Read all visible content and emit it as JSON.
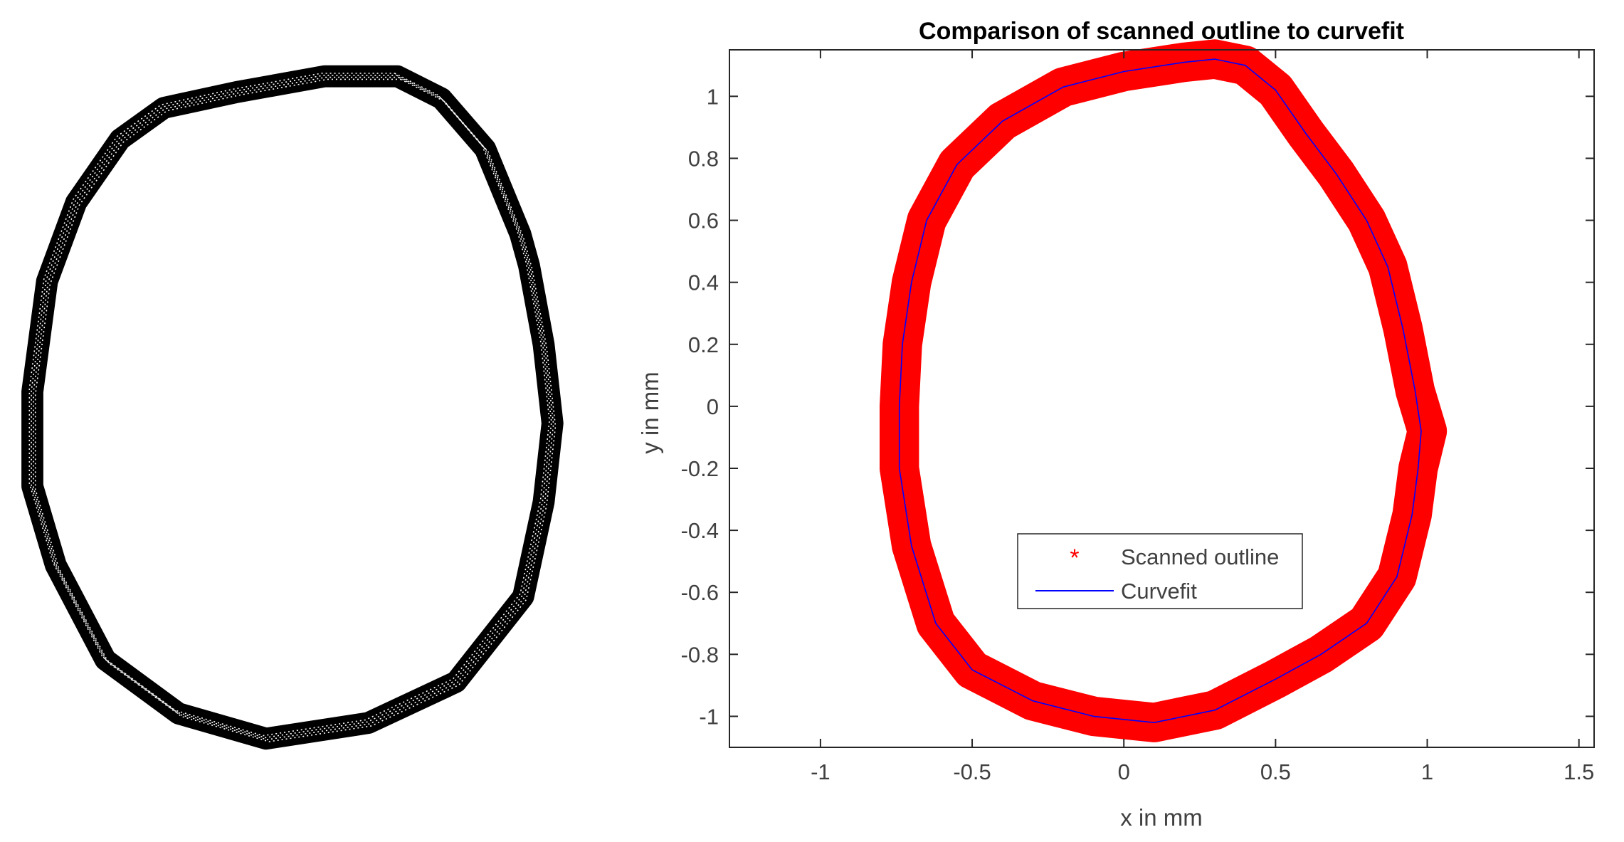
{
  "chart_data": [
    {
      "type": "scatter",
      "title": "",
      "xlabel": "",
      "ylabel": "",
      "axes_visible": false,
      "series": [
        {
          "marker": "dot",
          "color": "#000000",
          "band_width": 0.075,
          "points": [
            [
              0.25,
              1.1
            ],
            [
              0.4,
              1.03
            ],
            [
              0.55,
              0.87
            ],
            [
              0.67,
              0.6
            ],
            [
              0.7,
              0.5
            ],
            [
              0.75,
              0.25
            ],
            [
              0.78,
              0.0
            ],
            [
              0.75,
              -0.25
            ],
            [
              0.68,
              -0.55
            ],
            [
              0.45,
              -0.82
            ],
            [
              0.15,
              -0.95
            ],
            [
              -0.2,
              -1.0
            ],
            [
              -0.5,
              -0.92
            ],
            [
              -0.75,
              -0.75
            ],
            [
              -0.92,
              -0.45
            ],
            [
              -1.0,
              -0.2
            ],
            [
              -1.0,
              0.1
            ],
            [
              -0.95,
              0.45
            ],
            [
              -0.85,
              0.7
            ],
            [
              -0.7,
              0.9
            ],
            [
              -0.55,
              1.0
            ],
            [
              -0.3,
              1.05
            ],
            [
              0.0,
              1.1
            ],
            [
              0.25,
              1.1
            ]
          ]
        }
      ]
    },
    {
      "type": "scatter",
      "title": "Comparison of scanned outline to curvefit",
      "xlabel": "x in mm",
      "ylabel": "y in mm",
      "xlim": [
        -1.3,
        1.55
      ],
      "ylim": [
        -1.1,
        1.15
      ],
      "xticks": [
        -1,
        -0.5,
        0,
        0.5,
        1,
        1.5
      ],
      "xtick_labels": [
        "-1",
        "-0.5",
        "0",
        "0.5",
        "1",
        "1.5"
      ],
      "yticks": [
        -1,
        -0.8,
        -0.6,
        -0.4,
        -0.2,
        0,
        0.2,
        0.4,
        0.6,
        0.8,
        1
      ],
      "ytick_labels": [
        "-1",
        "-0.8",
        "-0.6",
        "-0.4",
        "-0.2",
        "0",
        "0.2",
        "0.4",
        "0.6",
        "0.8",
        "1"
      ],
      "grid": false,
      "legend": {
        "position": "lower-center"
      },
      "series": [
        {
          "name": "Scanned outline",
          "marker": "*",
          "color": "#ff0000",
          "band_width": 0.13,
          "points": [
            [
              0.3,
              1.12
            ],
            [
              0.4,
              1.1
            ],
            [
              0.5,
              1.02
            ],
            [
              0.6,
              0.88
            ],
            [
              0.7,
              0.75
            ],
            [
              0.8,
              0.6
            ],
            [
              0.87,
              0.45
            ],
            [
              0.92,
              0.25
            ],
            [
              0.96,
              0.05
            ],
            [
              1.0,
              -0.08
            ],
            [
              0.97,
              -0.2
            ],
            [
              0.95,
              -0.35
            ],
            [
              0.9,
              -0.55
            ],
            [
              0.8,
              -0.7
            ],
            [
              0.65,
              -0.8
            ],
            [
              0.5,
              -0.88
            ],
            [
              0.3,
              -0.98
            ],
            [
              0.1,
              -1.02
            ],
            [
              -0.1,
              -1.0
            ],
            [
              -0.3,
              -0.95
            ],
            [
              -0.5,
              -0.85
            ],
            [
              -0.62,
              -0.7
            ],
            [
              -0.7,
              -0.45
            ],
            [
              -0.74,
              -0.2
            ],
            [
              -0.74,
              0.0
            ],
            [
              -0.73,
              0.2
            ],
            [
              -0.7,
              0.4
            ],
            [
              -0.65,
              0.6
            ],
            [
              -0.55,
              0.78
            ],
            [
              -0.4,
              0.92
            ],
            [
              -0.2,
              1.03
            ],
            [
              0.0,
              1.08
            ],
            [
              0.2,
              1.11
            ],
            [
              0.3,
              1.12
            ]
          ]
        },
        {
          "name": "Curvefit",
          "marker": "line",
          "color": "#0000ff",
          "points": [
            [
              0.3,
              1.12
            ],
            [
              0.4,
              1.1
            ],
            [
              0.5,
              1.02
            ],
            [
              0.6,
              0.88
            ],
            [
              0.7,
              0.75
            ],
            [
              0.8,
              0.6
            ],
            [
              0.87,
              0.45
            ],
            [
              0.92,
              0.25
            ],
            [
              0.96,
              0.05
            ],
            [
              0.98,
              -0.08
            ],
            [
              0.97,
              -0.2
            ],
            [
              0.95,
              -0.35
            ],
            [
              0.9,
              -0.55
            ],
            [
              0.8,
              -0.7
            ],
            [
              0.65,
              -0.8
            ],
            [
              0.5,
              -0.88
            ],
            [
              0.3,
              -0.98
            ],
            [
              0.1,
              -1.02
            ],
            [
              -0.1,
              -1.0
            ],
            [
              -0.3,
              -0.95
            ],
            [
              -0.5,
              -0.85
            ],
            [
              -0.62,
              -0.7
            ],
            [
              -0.7,
              -0.45
            ],
            [
              -0.74,
              -0.2
            ],
            [
              -0.74,
              0.0
            ],
            [
              -0.73,
              0.2
            ],
            [
              -0.7,
              0.4
            ],
            [
              -0.65,
              0.6
            ],
            [
              -0.55,
              0.78
            ],
            [
              -0.4,
              0.92
            ],
            [
              -0.2,
              1.03
            ],
            [
              0.0,
              1.08
            ],
            [
              0.2,
              1.11
            ],
            [
              0.3,
              1.12
            ]
          ]
        }
      ]
    }
  ]
}
